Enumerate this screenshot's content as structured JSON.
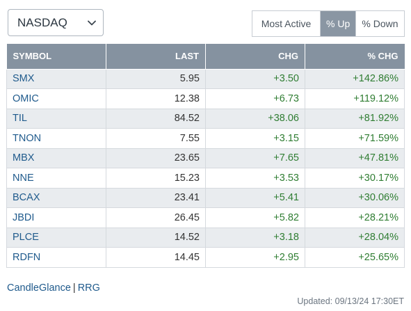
{
  "exchange": {
    "selected": "NASDAQ",
    "icon": "chevron-down-icon"
  },
  "tabs": [
    {
      "label": "Most Active",
      "active": false
    },
    {
      "label": "% Up",
      "active": true
    },
    {
      "label": "% Down",
      "active": false
    }
  ],
  "table": {
    "headers": {
      "symbol": "SYMBOL",
      "last": "LAST",
      "chg": "CHG",
      "pct": "% CHG"
    },
    "rows": [
      {
        "symbol": "SMX",
        "last": "5.95",
        "chg": "+3.50",
        "pct": "+142.86%"
      },
      {
        "symbol": "OMIC",
        "last": "12.38",
        "chg": "+6.73",
        "pct": "+119.12%"
      },
      {
        "symbol": "TIL",
        "last": "84.52",
        "chg": "+38.06",
        "pct": "+81.92%"
      },
      {
        "symbol": "TNON",
        "last": "7.55",
        "chg": "+3.15",
        "pct": "+71.59%"
      },
      {
        "symbol": "MBX",
        "last": "23.65",
        "chg": "+7.65",
        "pct": "+47.81%"
      },
      {
        "symbol": "NNE",
        "last": "15.23",
        "chg": "+3.53",
        "pct": "+30.17%"
      },
      {
        "symbol": "BCAX",
        "last": "23.41",
        "chg": "+5.41",
        "pct": "+30.06%"
      },
      {
        "symbol": "JBDI",
        "last": "26.45",
        "chg": "+5.82",
        "pct": "+28.21%"
      },
      {
        "symbol": "PLCE",
        "last": "14.52",
        "chg": "+3.18",
        "pct": "+28.04%"
      },
      {
        "symbol": "RDFN",
        "last": "14.45",
        "chg": "+2.95",
        "pct": "+25.65%"
      }
    ]
  },
  "footer": {
    "link1": "CandleGlance",
    "separator": "|",
    "link2": "RRG",
    "updated": "Updated: 09/13/24 17:30ET"
  },
  "colors": {
    "header_bg": "#8592a0",
    "active_tab_bg": "#8a96a3",
    "symbol_link": "#1f5a8c",
    "positive": "#2f7d32",
    "row_alt_bg": "#e9ecef"
  }
}
